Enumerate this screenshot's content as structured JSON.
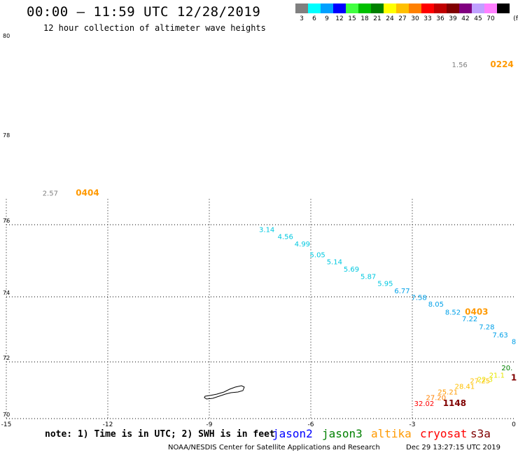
{
  "header": {
    "title": "00:00 — 11:59 UTC 12/28/2019",
    "subtitle": "12 hour collection of altimeter wave heights"
  },
  "legend": {
    "unit": "(ft)",
    "bins": [
      {
        "label": "3",
        "color": "#808080"
      },
      {
        "label": "6",
        "color": "#00ffff"
      },
      {
        "label": "9",
        "color": "#00a0ff"
      },
      {
        "label": "12",
        "color": "#0000ff"
      },
      {
        "label": "15",
        "color": "#40ff40"
      },
      {
        "label": "18",
        "color": "#00c000"
      },
      {
        "label": "21",
        "color": "#008000"
      },
      {
        "label": "24",
        "color": "#ffff00"
      },
      {
        "label": "27",
        "color": "#ffc000"
      },
      {
        "label": "30",
        "color": "#ff8000"
      },
      {
        "label": "33",
        "color": "#ff0000"
      },
      {
        "label": "36",
        "color": "#c00000"
      },
      {
        "label": "39",
        "color": "#800000"
      },
      {
        "label": "42",
        "color": "#800080"
      },
      {
        "label": "45",
        "color": "#c0a0ff"
      },
      {
        "label": "70",
        "color": "#ff80ff"
      },
      {
        "label": "",
        "color": "#000000"
      }
    ]
  },
  "axes": {
    "lon_ticks": [
      "-15",
      "-12",
      "-9",
      "-6",
      "-3",
      "0"
    ],
    "lat_ticks": [
      "80",
      "78",
      "76",
      "74",
      "72",
      "70"
    ]
  },
  "observations": [
    {
      "text": "1.56",
      "color": "#808080",
      "lon": -1.6,
      "lat": 79.45
    },
    {
      "text": "0224",
      "color": "#ff9900",
      "lon": -0.35,
      "lat": 79.45,
      "time": true
    },
    {
      "text": "2.57",
      "color": "#808080",
      "lon": -13.7,
      "lat": 76.68
    },
    {
      "text": "0404",
      "color": "#ff9900",
      "lon": -12.6,
      "lat": 76.68,
      "time": true
    },
    {
      "text": "3.14",
      "color": "#00c8e0",
      "lon": -7.3,
      "lat": 75.8
    },
    {
      "text": "4.56",
      "color": "#00c8e0",
      "lon": -6.75,
      "lat": 75.6
    },
    {
      "text": "4.99",
      "color": "#00c8e0",
      "lon": -6.25,
      "lat": 75.4
    },
    {
      "text": "5.05",
      "color": "#00c8e0",
      "lon": -5.8,
      "lat": 75.1
    },
    {
      "text": "5.14",
      "color": "#00c8e0",
      "lon": -5.3,
      "lat": 74.9
    },
    {
      "text": "5.69",
      "color": "#00c8e0",
      "lon": -4.8,
      "lat": 74.7
    },
    {
      "text": "5.87",
      "color": "#00c8e0",
      "lon": -4.3,
      "lat": 74.5
    },
    {
      "text": "5.95",
      "color": "#00c8e0",
      "lon": -3.8,
      "lat": 74.3
    },
    {
      "text": "6.77",
      "color": "#00a0e8",
      "lon": -3.3,
      "lat": 74.1
    },
    {
      "text": "7.58",
      "color": "#00a0e8",
      "lon": -2.8,
      "lat": 73.9
    },
    {
      "text": "8.05",
      "color": "#00a0e8",
      "lon": -2.3,
      "lat": 73.7
    },
    {
      "text": "8.52",
      "color": "#00a0e8",
      "lon": -1.8,
      "lat": 73.45
    },
    {
      "text": "0403",
      "color": "#ff9900",
      "lon": -1.1,
      "lat": 73.45,
      "time": true
    },
    {
      "text": "7.22",
      "color": "#00a0e8",
      "lon": -1.3,
      "lat": 73.25
    },
    {
      "text": "7.28",
      "color": "#00a0e8",
      "lon": -0.8,
      "lat": 73.0
    },
    {
      "text": "7.63",
      "color": "#00a0e8",
      "lon": -0.4,
      "lat": 72.75
    },
    {
      "text": "8",
      "color": "#00a0e8",
      "lon": 0.0,
      "lat": 72.55
    },
    {
      "text": "20.",
      "color": "#008000",
      "lon": -0.2,
      "lat": 71.7
    },
    {
      "text": "21.1",
      "color": "#e6e600",
      "lon": -0.5,
      "lat": 71.45
    },
    {
      "text": "1",
      "color": "#800000",
      "lon": 0.0,
      "lat": 71.35,
      "time": true
    },
    {
      "text": "22.3",
      "color": "#e6e600",
      "lon": -0.85,
      "lat": 71.3
    },
    {
      "text": "27.25",
      "color": "#ffc000",
      "lon": -1.0,
      "lat": 71.25
    },
    {
      "text": "28.41",
      "color": "#ffc000",
      "lon": -1.45,
      "lat": 71.05
    },
    {
      "text": "25.21",
      "color": "#ff9900",
      "lon": -1.95,
      "lat": 70.85
    },
    {
      "text": "27.20",
      "color": "#ff8000",
      "lon": -2.3,
      "lat": 70.65
    },
    {
      "text": "32.02",
      "color": "#ff0000",
      "lon": -2.65,
      "lat": 70.45
    },
    {
      "text": "1148",
      "color": "#800000",
      "lon": -1.75,
      "lat": 70.45,
      "time": true
    }
  ],
  "footer": {
    "note": "note:  1) Time is in UTC;  2) SWH is in feet",
    "satellites": [
      {
        "name": "jason2",
        "color": "#0000ff"
      },
      {
        "name": "jason3",
        "color": "#008000"
      },
      {
        "name": "altika",
        "color": "#ff9900"
      },
      {
        "name": "cryosat",
        "color": "#ff0000"
      },
      {
        "name": "s3a",
        "color": "#800000"
      }
    ],
    "credit": "NOAA/NESDIS Center for Satellite Applications and Research",
    "timestamp": "Dec 29 13:27:15 UTC 2019"
  }
}
